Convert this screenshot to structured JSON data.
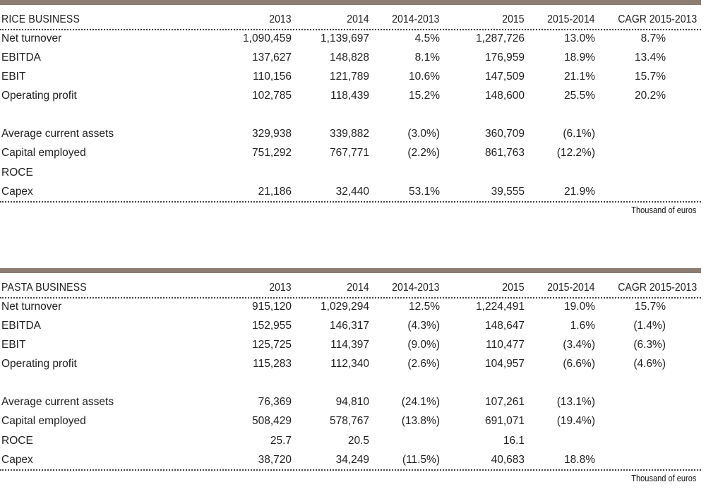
{
  "columns": [
    "2013",
    "2014",
    "2014-2013",
    "2015",
    "2015-2014",
    "CAGR 2015-2013"
  ],
  "unit_note": "Thousand of euros",
  "rice": {
    "title": "RICE BUSINESS",
    "rows": [
      {
        "label": "Net turnover",
        "values": [
          "1,090,459",
          "1,139,697",
          "4.5%",
          "1,287,726",
          "13.0%",
          "8.7%"
        ]
      },
      {
        "label": "EBITDA",
        "values": [
          "137,627",
          "148,828",
          "8.1%",
          "176,959",
          "18.9%",
          "13.4%"
        ]
      },
      {
        "label": "EBIT",
        "values": [
          "110,156",
          "121,789",
          "10.6%",
          "147,509",
          "21.1%",
          "15.7%"
        ]
      },
      {
        "label": "Operating profit",
        "values": [
          "102,785",
          "118,439",
          "15.2%",
          "148,600",
          "25.5%",
          "20.2%"
        ]
      },
      {
        "label": "Average current assets",
        "values": [
          "329,938",
          "339,882",
          "(3.0%)",
          "360,709",
          "(6.1%)",
          ""
        ]
      },
      {
        "label": "Capital employed",
        "values": [
          "751,292",
          "767,771",
          "(2.2%)",
          "861,763",
          "(12.2%)",
          ""
        ]
      },
      {
        "label": "ROCE",
        "values": [
          "",
          "",
          "",
          "",
          "",
          ""
        ]
      },
      {
        "label": "Capex",
        "values": [
          "21,186",
          "32,440",
          "53.1%",
          "39,555",
          "21.9%",
          ""
        ]
      }
    ]
  },
  "pasta": {
    "title": "PASTA BUSINESS",
    "rows": [
      {
        "label": "Net turnover",
        "values": [
          "915,120",
          "1,029,294",
          "12.5%",
          "1,224,491",
          "19.0%",
          "15.7%"
        ]
      },
      {
        "label": "EBITDA",
        "values": [
          "152,955",
          "146,317",
          "(4.3%)",
          "148,647",
          "1.6%",
          "(1.4%)"
        ]
      },
      {
        "label": "EBIT",
        "values": [
          "125,725",
          "114,397",
          "(9.0%)",
          "110,477",
          "(3.4%)",
          "(6.3%)"
        ]
      },
      {
        "label": "Operating profit",
        "values": [
          "115,283",
          "112,340",
          "(2.6%)",
          "104,957",
          "(6.6%)",
          "(4.6%)"
        ]
      },
      {
        "label": "Average current assets",
        "values": [
          "76,369",
          "94,810",
          "(24.1%)",
          "107,261",
          "(13.1%)",
          ""
        ]
      },
      {
        "label": "Capital employed",
        "values": [
          "508,429",
          "578,767",
          "(13.8%)",
          "691,071",
          "(19.4%)",
          ""
        ]
      },
      {
        "label": "ROCE",
        "values": [
          "25.7",
          "20.5",
          "",
          "16.1",
          "",
          ""
        ]
      },
      {
        "label": "Capex",
        "values": [
          "38,720",
          "34,249",
          "(11.5%)",
          "40,683",
          "18.8%",
          ""
        ]
      }
    ]
  }
}
